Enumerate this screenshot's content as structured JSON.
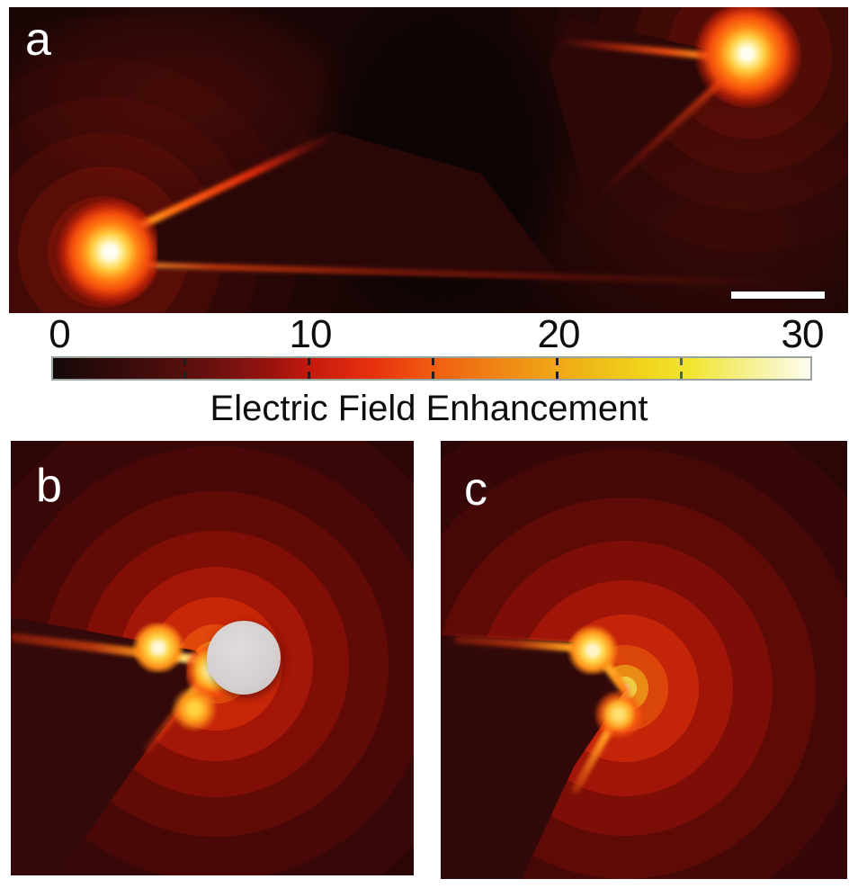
{
  "figure": {
    "panels": {
      "a": {
        "label": "a",
        "has_scale_bar": true
      },
      "b": {
        "label": "b",
        "has_particle": true
      },
      "c": {
        "label": "c",
        "has_particle": false
      }
    },
    "colorbar": {
      "title": "Electric Field Enhancement",
      "major_tick_labels": [
        "0",
        "10",
        "20",
        "30"
      ],
      "minor_tick_values": [
        5,
        15,
        25
      ]
    }
  },
  "chart_data": {
    "type": "heatmap",
    "title": "Electric Field Enhancement",
    "value_range": [
      0,
      30
    ],
    "colorbar": {
      "label": "Electric Field Enhancement",
      "min": 0,
      "max": 30,
      "major_ticks": [
        0,
        10,
        20,
        30
      ],
      "minor_ticks": [
        5,
        15,
        25
      ],
      "orientation": "horizontal",
      "gradient_stops": [
        "#150909",
        "#4c0e0c",
        "#9c140e",
        "#e7300e",
        "#f05c10",
        "#f09c16",
        "#f0d41c",
        "#f2e52e",
        "#fdfcf0"
      ]
    },
    "panels": [
      {
        "id": "a",
        "label": "a",
        "description": "Field map of two opposing tapered tips with dark disk between them; enhancement is maximal at the two tip apices",
        "hotspots": [
          {
            "x_frac": 0.11,
            "y_frac": 0.79,
            "peak_enhancement": 30
          },
          {
            "x_frac": 0.87,
            "y_frac": 0.16,
            "peak_enhancement": 30
          }
        ],
        "has_scale_bar": true
      },
      {
        "id": "b",
        "label": "b",
        "description": "Close-up of a tip apex with a spherical particle adjacent to the apex; bright enhancement band along the tip edges",
        "hotspots": [
          {
            "x_frac": 0.5,
            "y_frac": 0.52,
            "peak_enhancement": 30
          }
        ],
        "has_particle": true
      },
      {
        "id": "c",
        "label": "c",
        "description": "Close-up of the bare tip apex without particle; enhancement concentrated along the apex edges",
        "hotspots": [
          {
            "x_frac": 0.45,
            "y_frac": 0.57,
            "peak_enhancement": 30
          }
        ],
        "has_particle": false
      }
    ]
  }
}
